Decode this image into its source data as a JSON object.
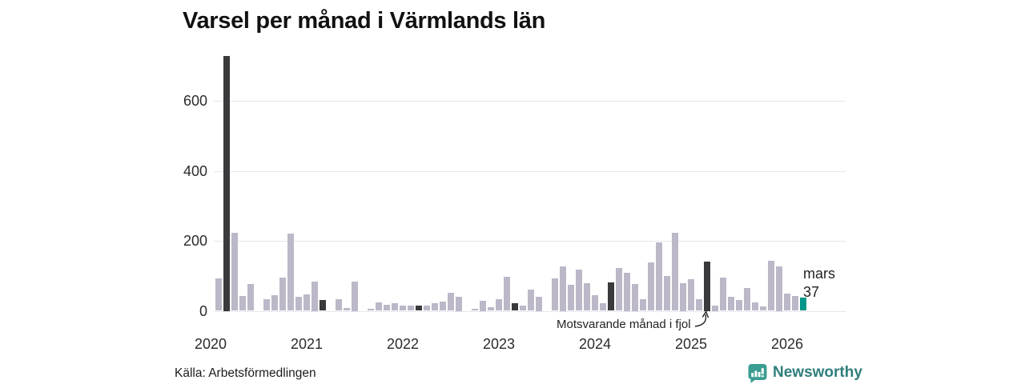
{
  "title": "Varsel per månad i Värmlands län",
  "source": "Källa: Arbetsförmedlingen",
  "brand": {
    "name": "Newsworthy",
    "icon": "newsworthy-bubble-barchart-icon",
    "icon_color": "#3a9d91",
    "text_color": "#2f7e7c"
  },
  "annotation": {
    "text": "Motsvarande månad i fjol",
    "target_month": "mars 2025"
  },
  "current_point": {
    "month_label": "mars",
    "value_label": "37"
  },
  "colors": {
    "bar_default": "#bcb8c8",
    "bar_last_year": "#3a393b",
    "bar_current": "#009688",
    "gridline": "#e7e5ec",
    "axis_text": "#2b2b2b"
  },
  "chart_data": {
    "type": "bar",
    "title": "Varsel per månad i Värmlands län",
    "xlabel": "",
    "ylabel": "",
    "ylim": [
      0,
      740
    ],
    "y_ticks": [
      0,
      200,
      400,
      600
    ],
    "year_ticks": [
      "2020",
      "2021",
      "2022",
      "2023",
      "2024",
      "2025",
      "2026"
    ],
    "grid": "horizontal",
    "legend": "none",
    "months": [
      "2020-02",
      "2020-03",
      "2020-04",
      "2020-05",
      "2020-06",
      "2020-07",
      "2020-08",
      "2020-09",
      "2020-10",
      "2020-11",
      "2020-12",
      "2021-01",
      "2021-02",
      "2021-03",
      "2021-04",
      "2021-05",
      "2021-06",
      "2021-07",
      "2021-08",
      "2021-09",
      "2021-10",
      "2021-11",
      "2021-12",
      "2022-01",
      "2022-02",
      "2022-03",
      "2022-04",
      "2022-05",
      "2022-06",
      "2022-07",
      "2022-08",
      "2022-09",
      "2022-10",
      "2022-11",
      "2022-12",
      "2023-01",
      "2023-02",
      "2023-03",
      "2023-04",
      "2023-05",
      "2023-06",
      "2023-07",
      "2023-08",
      "2023-09",
      "2023-10",
      "2023-11",
      "2023-12",
      "2024-01",
      "2024-02",
      "2024-03",
      "2024-04",
      "2024-05",
      "2024-06",
      "2024-07",
      "2024-08",
      "2024-09",
      "2024-10",
      "2024-11",
      "2024-12",
      "2025-01",
      "2025-02",
      "2025-03",
      "2025-04",
      "2025-05",
      "2025-06",
      "2025-07",
      "2025-08",
      "2025-09",
      "2025-10",
      "2025-11",
      "2025-12",
      "2026-01",
      "2026-02",
      "2026-03"
    ],
    "values": [
      93,
      728,
      222,
      43,
      77,
      0,
      33,
      45,
      95,
      221,
      41,
      47,
      84,
      31,
      0,
      34,
      9,
      84,
      0,
      6,
      23,
      18,
      21,
      14,
      15,
      14,
      15,
      21,
      27,
      51,
      40,
      0,
      5,
      28,
      10,
      34,
      97,
      21,
      15,
      61,
      40,
      0,
      93,
      128,
      74,
      117,
      79,
      45,
      21,
      82,
      122,
      108,
      76,
      34,
      139,
      195,
      99,
      223,
      80,
      91,
      33,
      140,
      16,
      95,
      39,
      31,
      66,
      23,
      13,
      143,
      128,
      50,
      43,
      37
    ],
    "last_year_months": [
      "2020-03",
      "2021-03",
      "2022-03",
      "2023-03",
      "2024-03",
      "2025-03"
    ],
    "current_month": "2026-03"
  }
}
